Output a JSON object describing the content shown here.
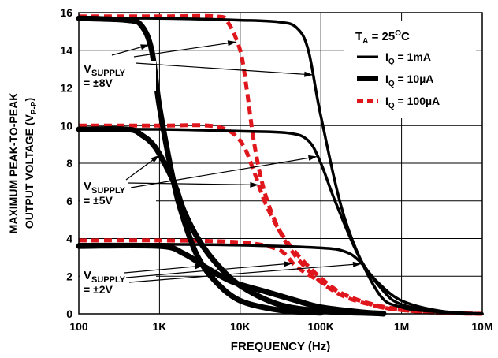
{
  "chart_data": {
    "type": "line",
    "xlabel": "FREQUENCY (Hz)",
    "ylabel": {
      "main": "MAXIMUM PEAK-TO-PEAK",
      "line2": "OUTPUT VOLTAGE (V",
      "sub": "P-P",
      "close": ")"
    },
    "x_scale": "log",
    "xlim": [
      100,
      10000000
    ],
    "ylim": [
      0,
      16
    ],
    "grid": true,
    "x_ticks": [
      {
        "value": 100,
        "label": "100"
      },
      {
        "value": 1000,
        "label": "1K"
      },
      {
        "value": 10000,
        "label": "10K"
      },
      {
        "value": 100000,
        "label": "100K"
      },
      {
        "value": 1000000,
        "label": "1M"
      },
      {
        "value": 10000000,
        "label": "10M"
      }
    ],
    "y_ticks": [
      0,
      2,
      4,
      6,
      8,
      10,
      12,
      14,
      16
    ],
    "legend": {
      "placement": "top-right",
      "title": {
        "main": "T",
        "sub": "A",
        "rest": " = 25",
        "sup": "O",
        "unit": "C"
      },
      "entries": [
        {
          "main": "I",
          "sub": "Q",
          "rest": " = 1mA",
          "style": "thin"
        },
        {
          "main": "I",
          "sub": "Q",
          "rest": " = 10µA",
          "style": "thick"
        },
        {
          "main": "I",
          "sub": "Q",
          "rest": " = 100µA",
          "style": "dashed"
        }
      ]
    },
    "colors": {
      "solid": "#000000",
      "dashed": "#e0161d",
      "grid": "#000000"
    },
    "annotations": [
      {
        "main": "V",
        "sub": "SUPPLY",
        "line2": "= ±8V"
      },
      {
        "main": "V",
        "sub": "SUPPLY",
        "line2": "= ±5V"
      },
      {
        "main": "V",
        "sub": "SUPPLY",
        "line2": "= ±2V"
      }
    ],
    "series": [
      {
        "supply": "±8V",
        "iq": "1mA",
        "style": "thin",
        "points": [
          [
            100,
            15.7
          ],
          [
            1000,
            15.7
          ],
          [
            10000,
            15.6
          ],
          [
            30000,
            15.5
          ],
          [
            50000,
            15.2
          ],
          [
            70000,
            14
          ],
          [
            100000,
            10.5
          ],
          [
            200000,
            5
          ],
          [
            500000,
            1.2
          ],
          [
            1000000,
            0.35
          ],
          [
            3000000,
            0.1
          ],
          [
            10000000,
            0
          ]
        ]
      },
      {
        "supply": "±8V",
        "iq": "10µA",
        "style": "thick",
        "points": [
          [
            100,
            15.7
          ],
          [
            400,
            15.6
          ],
          [
            600,
            15.3
          ],
          [
            800,
            14
          ],
          [
            1000,
            11
          ],
          [
            1500,
            7
          ],
          [
            2000,
            5
          ],
          [
            3000,
            3
          ],
          [
            5000,
            1.7
          ],
          [
            10000,
            0.7
          ],
          [
            30000,
            0.2
          ],
          [
            100000,
            0.05
          ]
        ]
      },
      {
        "supply": "±8V",
        "iq": "100µA",
        "style": "dashed",
        "points": [
          [
            100,
            15.8
          ],
          [
            1000,
            15.8
          ],
          [
            5000,
            15.8
          ],
          [
            7000,
            15.5
          ],
          [
            10000,
            14
          ],
          [
            12000,
            12
          ],
          [
            15000,
            9
          ],
          [
            20000,
            6.5
          ],
          [
            30000,
            4.5
          ],
          [
            50000,
            3
          ],
          [
            100000,
            1.7
          ],
          [
            200000,
            0.9
          ],
          [
            500000,
            0.4
          ],
          [
            1000000,
            0.2
          ],
          [
            3000000,
            0.05
          ],
          [
            10000000,
            0
          ]
        ]
      },
      {
        "supply": "±5V",
        "iq": "1mA",
        "style": "thin",
        "points": [
          [
            100,
            9.8
          ],
          [
            1000,
            9.8
          ],
          [
            10000,
            9.7
          ],
          [
            40000,
            9.6
          ],
          [
            70000,
            9.2
          ],
          [
            100000,
            8
          ],
          [
            150000,
            6
          ],
          [
            300000,
            3
          ],
          [
            600000,
            1.2
          ],
          [
            1000000,
            0.5
          ],
          [
            3000000,
            0.1
          ],
          [
            10000000,
            0
          ]
        ]
      },
      {
        "supply": "±5V",
        "iq": "10µA",
        "style": "thick",
        "points": [
          [
            100,
            9.8
          ],
          [
            400,
            9.8
          ],
          [
            600,
            9.5
          ],
          [
            900,
            8.8
          ],
          [
            1500,
            7
          ],
          [
            2000,
            5.5
          ],
          [
            3000,
            4
          ],
          [
            5000,
            2.7
          ],
          [
            10000,
            1.5
          ],
          [
            30000,
            0.5
          ],
          [
            100000,
            0.15
          ],
          [
            300000,
            0.05
          ],
          [
            600000,
            0.02
          ]
        ]
      },
      {
        "supply": "±5V",
        "iq": "100µA",
        "style": "dashed",
        "points": [
          [
            100,
            10
          ],
          [
            1000,
            10
          ],
          [
            5000,
            9.95
          ],
          [
            10000,
            9.2
          ],
          [
            15000,
            7.5
          ],
          [
            20000,
            6
          ],
          [
            30000,
            4.5
          ],
          [
            50000,
            3.2
          ],
          [
            100000,
            1.9
          ],
          [
            200000,
            1
          ],
          [
            500000,
            0.45
          ],
          [
            1000000,
            0.25
          ],
          [
            3000000,
            0.07
          ],
          [
            10000000,
            0
          ]
        ]
      },
      {
        "supply": "±2V",
        "iq": "1mA",
        "style": "thin",
        "points": [
          [
            100,
            3.7
          ],
          [
            1000,
            3.7
          ],
          [
            10000,
            3.65
          ],
          [
            100000,
            3.5
          ],
          [
            200000,
            3.3
          ],
          [
            300000,
            2.8
          ],
          [
            500000,
            1.7
          ],
          [
            1000000,
            0.7
          ],
          [
            3000000,
            0.15
          ],
          [
            10000000,
            0
          ]
        ]
      },
      {
        "supply": "±2V",
        "iq": "10µA",
        "style": "thick",
        "points": [
          [
            100,
            3.6
          ],
          [
            1000,
            3.6
          ],
          [
            2000,
            3.2
          ],
          [
            4000,
            2.4
          ],
          [
            8000,
            1.7
          ],
          [
            20000,
            1.2
          ],
          [
            50000,
            0.7
          ],
          [
            100000,
            0.35
          ],
          [
            300000,
            0.1
          ],
          [
            600000,
            0
          ]
        ]
      },
      {
        "supply": "±2V",
        "iq": "100µA",
        "style": "dashed",
        "points": [
          [
            100,
            3.9
          ],
          [
            1000,
            3.9
          ],
          [
            10000,
            3.8
          ],
          [
            30000,
            3.4
          ],
          [
            50000,
            2.5
          ],
          [
            100000,
            1.7
          ],
          [
            200000,
            1
          ],
          [
            500000,
            0.4
          ],
          [
            1000000,
            0.2
          ],
          [
            3000000,
            0.05
          ],
          [
            10000000,
            0
          ]
        ]
      }
    ]
  }
}
